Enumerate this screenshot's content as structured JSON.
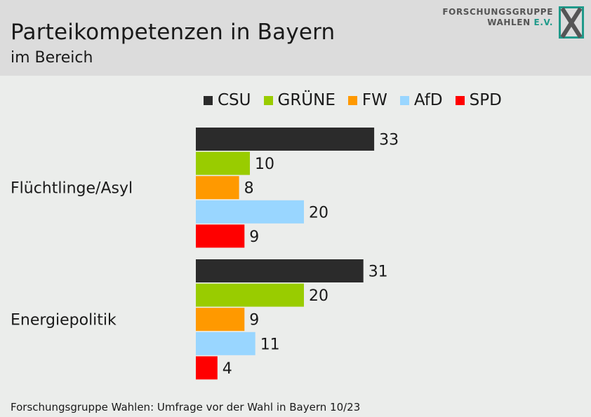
{
  "header": {
    "title": "Parteikompetenzen in Bayern",
    "subtitle": "im Bereich",
    "logo_line1": "FORSCHUNGSGRUPPE",
    "logo_line2a": "WAHLEN",
    "logo_line2b": "E.V."
  },
  "footer": {
    "source": "Forschungsgruppe Wahlen: Umfrage vor der Wahl in Bayern 10/23"
  },
  "chart_data": {
    "type": "bar",
    "orientation": "horizontal",
    "categories": [
      "Flüchtlinge/Asyl",
      "Energiepolitik"
    ],
    "series": [
      {
        "name": "CSU",
        "color": "#2b2b2b",
        "values": [
          33,
          31
        ]
      },
      {
        "name": "GRÜNE",
        "color": "#99cc00",
        "values": [
          10,
          20
        ]
      },
      {
        "name": "FW",
        "color": "#ff9900",
        "values": [
          8,
          9
        ]
      },
      {
        "name": "AfD",
        "color": "#99d6ff",
        "values": [
          20,
          11
        ]
      },
      {
        "name": "SPD",
        "color": "#ff0000",
        "values": [
          9,
          4
        ]
      }
    ],
    "legend_position": "top",
    "data_labels": true,
    "grid": false
  }
}
